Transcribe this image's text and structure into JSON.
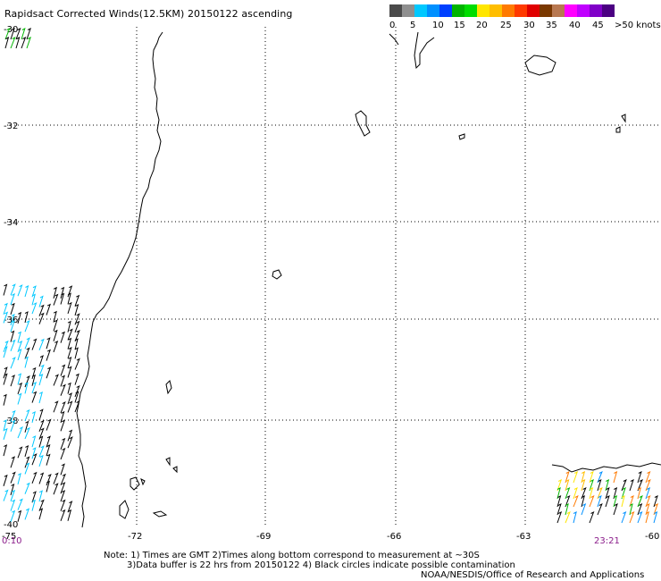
{
  "title": "Rapidsact Corrected Winds(12.5KM) 20150122 ascending",
  "legend": {
    "colors": [
      "#4a4a4a",
      "#8f8f8f",
      "#00c8ff",
      "#0090ff",
      "#0040ff",
      "#00b400",
      "#00dd00",
      "#ffe600",
      "#ffbe00",
      "#ff7a00",
      "#ff3a00",
      "#e00000",
      "#7a3800",
      "#b87850",
      "#ff00ff",
      "#c000ff",
      "#8000c8",
      "#4b0082"
    ],
    "labels": [
      "0",
      "5",
      "10",
      "15",
      "20",
      "25",
      "30",
      "35",
      "40",
      "45",
      ">50 knots"
    ]
  },
  "axes": {
    "lon_ticks": [
      "-75",
      "-72",
      "-69",
      "-66",
      "-63",
      "-60"
    ],
    "lat_ticks": [
      "-30",
      "-32",
      "-34",
      "-36",
      "-38",
      "-40"
    ]
  },
  "times": {
    "left": "0:10",
    "right": "23:21"
  },
  "notes": [
    "Note: 1) Times are GMT 2)Times along bottom correspond to measurement at ~30S",
    "3)Data buffer is 22 hrs from 20150122 4) Black circles indicate possible contamination",
    "NOAA/NESDIS/Office of Research and Applications"
  ]
}
